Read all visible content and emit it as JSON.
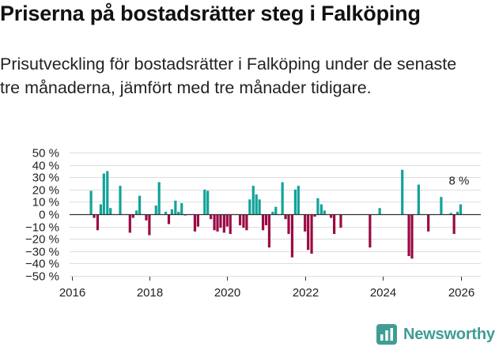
{
  "title": "Priserna på bostadsrätter steg i Falköping",
  "subtitle": "Prisutveckling för bostadsrätter i Falköping under de senaste tre månaderna, jämfört med tre månader tidigare.",
  "brand": {
    "name": "Newsworthy",
    "logo_icon": "bar-chart-logo-icon"
  },
  "colors": {
    "positive": "#12a39a",
    "negative": "#9b0a44",
    "grid": "#dddddd",
    "axis": "#333333",
    "brand": "#3f9d95"
  },
  "chart_data": {
    "type": "bar",
    "x_unit": "decimal year (monthly observations)",
    "y_unit": "percent",
    "ylim": [
      -50,
      50
    ],
    "xlim": [
      2016,
      2026.5
    ],
    "y_ticks": [
      50,
      40,
      30,
      20,
      10,
      0,
      -10,
      -20,
      -30,
      -40,
      -50
    ],
    "y_tick_labels": [
      "50 %",
      "40 %",
      "30 %",
      "20 %",
      "10 %",
      "0 %",
      "−10 %",
      "−20 %",
      "−30 %",
      "−40 %",
      "−50 %"
    ],
    "x_ticks": [
      2016,
      2018,
      2020,
      2022,
      2024,
      2026
    ],
    "x_tick_labels": [
      "2016",
      "2018",
      "2020",
      "2022",
      "2024",
      "2026"
    ],
    "grid": true,
    "annotation": {
      "text": "8 %",
      "x": 2025.917,
      "y": 8
    },
    "points": [
      {
        "x": 2016.5,
        "y": 19
      },
      {
        "x": 2016.58,
        "y": -3
      },
      {
        "x": 2016.67,
        "y": -13
      },
      {
        "x": 2016.75,
        "y": 8
      },
      {
        "x": 2016.83,
        "y": 33
      },
      {
        "x": 2016.92,
        "y": 35
      },
      {
        "x": 2017.0,
        "y": 5
      },
      {
        "x": 2017.25,
        "y": 23
      },
      {
        "x": 2017.5,
        "y": -15
      },
      {
        "x": 2017.58,
        "y": -3
      },
      {
        "x": 2017.67,
        "y": 3
      },
      {
        "x": 2017.75,
        "y": 15
      },
      {
        "x": 2017.92,
        "y": -5
      },
      {
        "x": 2018.0,
        "y": -17
      },
      {
        "x": 2018.17,
        "y": 7
      },
      {
        "x": 2018.25,
        "y": 26
      },
      {
        "x": 2018.42,
        "y": 2
      },
      {
        "x": 2018.5,
        "y": -8
      },
      {
        "x": 2018.58,
        "y": 4
      },
      {
        "x": 2018.67,
        "y": 11
      },
      {
        "x": 2018.75,
        "y": 2
      },
      {
        "x": 2018.83,
        "y": 9
      },
      {
        "x": 2018.92,
        "y": -1
      },
      {
        "x": 2019.17,
        "y": -14
      },
      {
        "x": 2019.25,
        "y": -10
      },
      {
        "x": 2019.42,
        "y": 20
      },
      {
        "x": 2019.5,
        "y": 19
      },
      {
        "x": 2019.58,
        "y": -4
      },
      {
        "x": 2019.67,
        "y": -13
      },
      {
        "x": 2019.75,
        "y": -14
      },
      {
        "x": 2019.83,
        "y": -11
      },
      {
        "x": 2019.92,
        "y": -15
      },
      {
        "x": 2020.0,
        "y": -10
      },
      {
        "x": 2020.08,
        "y": -16
      },
      {
        "x": 2020.33,
        "y": -9
      },
      {
        "x": 2020.42,
        "y": -11
      },
      {
        "x": 2020.5,
        "y": -13
      },
      {
        "x": 2020.58,
        "y": 12
      },
      {
        "x": 2020.67,
        "y": 23
      },
      {
        "x": 2020.75,
        "y": 16
      },
      {
        "x": 2020.83,
        "y": 12
      },
      {
        "x": 2020.92,
        "y": -13
      },
      {
        "x": 2021.0,
        "y": -9
      },
      {
        "x": 2021.08,
        "y": -27
      },
      {
        "x": 2021.17,
        "y": 2
      },
      {
        "x": 2021.25,
        "y": 6
      },
      {
        "x": 2021.42,
        "y": 26
      },
      {
        "x": 2021.5,
        "y": -4
      },
      {
        "x": 2021.58,
        "y": -16
      },
      {
        "x": 2021.67,
        "y": -35
      },
      {
        "x": 2021.75,
        "y": 20
      },
      {
        "x": 2021.83,
        "y": 23
      },
      {
        "x": 2022.0,
        "y": -14
      },
      {
        "x": 2022.08,
        "y": -29
      },
      {
        "x": 2022.17,
        "y": -32
      },
      {
        "x": 2022.25,
        "y": -2
      },
      {
        "x": 2022.33,
        "y": 13
      },
      {
        "x": 2022.42,
        "y": 8
      },
      {
        "x": 2022.5,
        "y": 3
      },
      {
        "x": 2022.67,
        "y": -3
      },
      {
        "x": 2022.75,
        "y": -16
      },
      {
        "x": 2022.92,
        "y": -11
      },
      {
        "x": 2023.67,
        "y": -27
      },
      {
        "x": 2023.92,
        "y": 5
      },
      {
        "x": 2024.5,
        "y": 36
      },
      {
        "x": 2024.67,
        "y": -34
      },
      {
        "x": 2024.75,
        "y": -36
      },
      {
        "x": 2024.92,
        "y": 24
      },
      {
        "x": 2025.17,
        "y": -14
      },
      {
        "x": 2025.5,
        "y": 14
      },
      {
        "x": 2025.75,
        "y": 1
      },
      {
        "x": 2025.83,
        "y": -16
      },
      {
        "x": 2025.92,
        "y": 2
      },
      {
        "x": 2026.0,
        "y": 8
      }
    ]
  }
}
